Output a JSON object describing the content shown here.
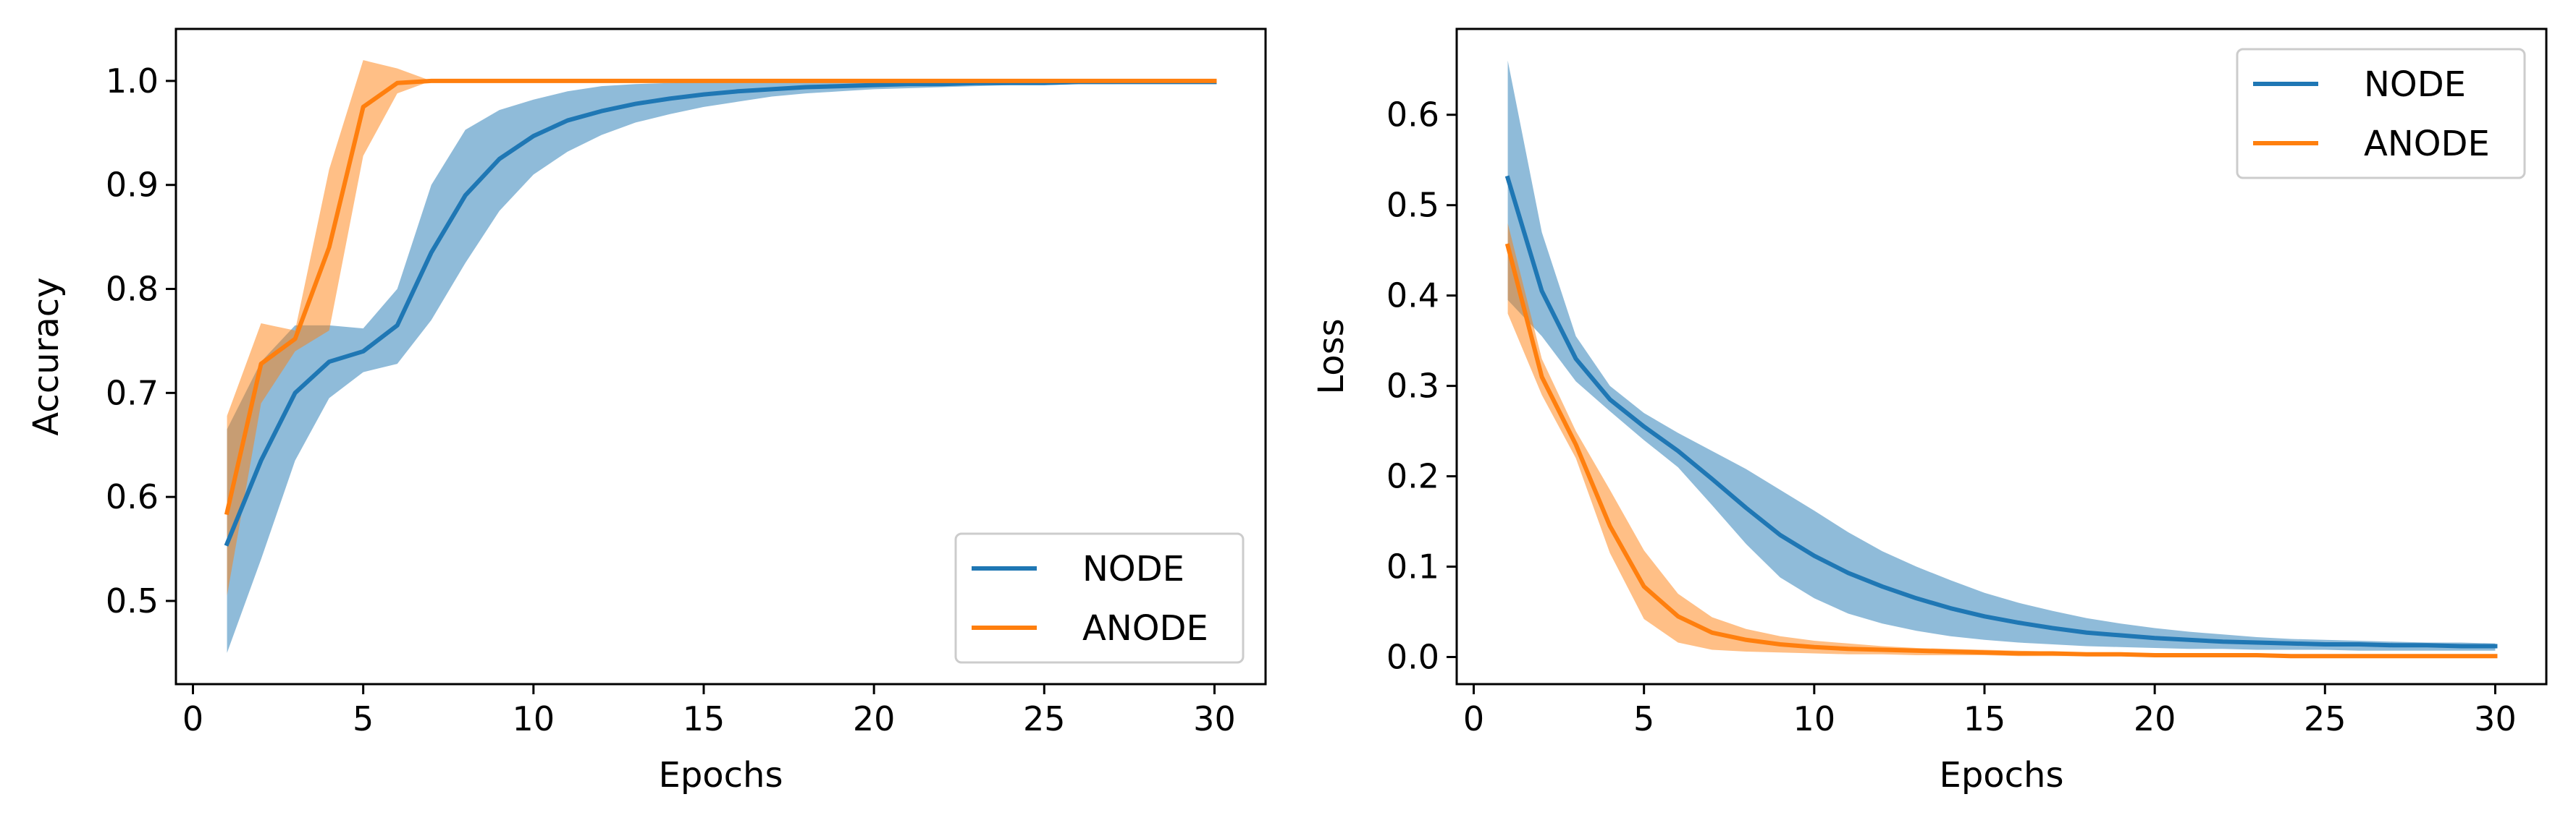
{
  "chart_data": [
    {
      "type": "line",
      "title": "",
      "xlabel": "Epochs",
      "ylabel": "Accuracy",
      "xlim": [
        -0.5,
        31.5
      ],
      "ylim": [
        0.42,
        1.05
      ],
      "xticks": [
        0,
        5,
        10,
        15,
        20,
        25,
        30
      ],
      "yticks": [
        0.5,
        0.6,
        0.7,
        0.8,
        0.9,
        1.0
      ],
      "ytick_decimals": 1,
      "grid": false,
      "legend_position": "lower-right",
      "x": [
        1,
        2,
        3,
        4,
        5,
        6,
        7,
        8,
        9,
        10,
        11,
        12,
        13,
        14,
        15,
        16,
        17,
        18,
        19,
        20,
        21,
        22,
        23,
        24,
        25,
        26,
        27,
        28,
        29,
        30
      ],
      "series": [
        {
          "name": "NODE",
          "color": "#1f77b4",
          "values": [
            0.555,
            0.635,
            0.7,
            0.73,
            0.74,
            0.765,
            0.835,
            0.89,
            0.925,
            0.947,
            0.962,
            0.971,
            0.978,
            0.983,
            0.987,
            0.99,
            0.992,
            0.994,
            0.995,
            0.996,
            0.997,
            0.997,
            0.998,
            0.998,
            0.998,
            0.999,
            0.999,
            0.999,
            0.999,
            0.999
          ],
          "lower": [
            0.45,
            0.54,
            0.635,
            0.695,
            0.72,
            0.728,
            0.77,
            0.825,
            0.875,
            0.91,
            0.932,
            0.948,
            0.96,
            0.968,
            0.975,
            0.98,
            0.985,
            0.988,
            0.99,
            0.992,
            0.993,
            0.994,
            0.995,
            0.996,
            0.996,
            0.997,
            0.997,
            0.998,
            0.998,
            0.998
          ],
          "upper": [
            0.665,
            0.73,
            0.765,
            0.765,
            0.762,
            0.8,
            0.9,
            0.953,
            0.972,
            0.982,
            0.99,
            0.995,
            0.997,
            0.998,
            0.999,
            1.0,
            1.0,
            1.0,
            1.0,
            1.0,
            1.0,
            1.0,
            1.0,
            1.0,
            1.0,
            1.0,
            1.0,
            1.0,
            1.0,
            1.0
          ]
        },
        {
          "name": "ANODE",
          "color": "#ff7f0e",
          "values": [
            0.585,
            0.728,
            0.752,
            0.84,
            0.975,
            0.998,
            1.0,
            1.0,
            1.0,
            1.0,
            1.0,
            1.0,
            1.0,
            1.0,
            1.0,
            1.0,
            1.0,
            1.0,
            1.0,
            1.0,
            1.0,
            1.0,
            1.0,
            1.0,
            1.0,
            1.0,
            1.0,
            1.0,
            1.0,
            1.0
          ],
          "lower": [
            0.505,
            0.69,
            0.74,
            0.76,
            0.928,
            0.988,
            1.0,
            1.0,
            1.0,
            1.0,
            1.0,
            1.0,
            1.0,
            1.0,
            1.0,
            1.0,
            1.0,
            1.0,
            1.0,
            1.0,
            1.0,
            1.0,
            1.0,
            1.0,
            1.0,
            1.0,
            1.0,
            1.0,
            1.0,
            1.0
          ],
          "upper": [
            0.678,
            0.767,
            0.76,
            0.915,
            1.02,
            1.012,
            1.0,
            1.0,
            1.0,
            1.0,
            1.0,
            1.0,
            1.0,
            1.0,
            1.0,
            1.0,
            1.0,
            1.0,
            1.0,
            1.0,
            1.0,
            1.0,
            1.0,
            1.0,
            1.0,
            1.0,
            1.0,
            1.0,
            1.0,
            1.0
          ]
        }
      ]
    },
    {
      "type": "line",
      "title": "",
      "xlabel": "Epochs",
      "ylabel": "Loss",
      "xlim": [
        -0.5,
        31.5
      ],
      "ylim": [
        -0.03,
        0.695
      ],
      "xticks": [
        0,
        5,
        10,
        15,
        20,
        25,
        30
      ],
      "yticks": [
        0.0,
        0.1,
        0.2,
        0.3,
        0.4,
        0.5,
        0.6
      ],
      "ytick_decimals": 1,
      "grid": false,
      "legend_position": "upper-right",
      "x": [
        1,
        2,
        3,
        4,
        5,
        6,
        7,
        8,
        9,
        10,
        11,
        12,
        13,
        14,
        15,
        16,
        17,
        18,
        19,
        20,
        21,
        22,
        23,
        24,
        25,
        26,
        27,
        28,
        29,
        30
      ],
      "series": [
        {
          "name": "NODE",
          "color": "#1f77b4",
          "values": [
            0.53,
            0.405,
            0.33,
            0.285,
            0.255,
            0.228,
            0.197,
            0.165,
            0.135,
            0.112,
            0.093,
            0.078,
            0.065,
            0.054,
            0.045,
            0.038,
            0.032,
            0.027,
            0.024,
            0.021,
            0.019,
            0.017,
            0.016,
            0.015,
            0.014,
            0.014,
            0.013,
            0.013,
            0.012,
            0.012
          ],
          "lower": [
            0.395,
            0.355,
            0.305,
            0.272,
            0.24,
            0.21,
            0.168,
            0.125,
            0.088,
            0.065,
            0.048,
            0.037,
            0.029,
            0.023,
            0.019,
            0.016,
            0.014,
            0.012,
            0.011,
            0.01,
            0.009,
            0.009,
            0.008,
            0.008,
            0.008,
            0.007,
            0.007,
            0.007,
            0.007,
            0.007
          ],
          "upper": [
            0.66,
            0.47,
            0.355,
            0.3,
            0.27,
            0.248,
            0.228,
            0.208,
            0.185,
            0.162,
            0.138,
            0.117,
            0.1,
            0.085,
            0.071,
            0.06,
            0.051,
            0.043,
            0.037,
            0.032,
            0.028,
            0.025,
            0.022,
            0.02,
            0.019,
            0.018,
            0.017,
            0.016,
            0.016,
            0.015
          ]
        },
        {
          "name": "ANODE",
          "color": "#ff7f0e",
          "values": [
            0.455,
            0.31,
            0.235,
            0.145,
            0.078,
            0.045,
            0.027,
            0.019,
            0.014,
            0.011,
            0.009,
            0.008,
            0.007,
            0.006,
            0.005,
            0.004,
            0.004,
            0.003,
            0.003,
            0.002,
            0.002,
            0.002,
            0.002,
            0.001,
            0.001,
            0.001,
            0.001,
            0.001,
            0.001,
            0.001
          ],
          "lower": [
            0.38,
            0.29,
            0.22,
            0.115,
            0.042,
            0.016,
            0.008,
            0.006,
            0.005,
            0.004,
            0.003,
            0.003,
            0.002,
            0.002,
            0.002,
            0.001,
            0.001,
            0.001,
            0.001,
            0.001,
            0.001,
            0.0,
            0.0,
            0.0,
            0.0,
            0.0,
            0.0,
            0.0,
            0.0,
            0.0
          ],
          "upper": [
            0.48,
            0.33,
            0.25,
            0.185,
            0.118,
            0.07,
            0.044,
            0.031,
            0.023,
            0.018,
            0.015,
            0.012,
            0.01,
            0.009,
            0.008,
            0.007,
            0.006,
            0.005,
            0.005,
            0.004,
            0.004,
            0.003,
            0.003,
            0.003,
            0.003,
            0.002,
            0.002,
            0.002,
            0.002,
            0.002
          ]
        }
      ]
    }
  ]
}
